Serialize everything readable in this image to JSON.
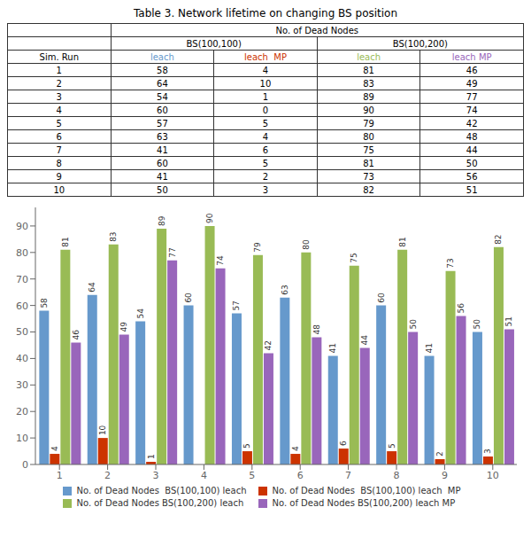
{
  "chart_data": {
    "type": "bar",
    "title": "Table 3. Network lifetime on changing BS position",
    "categories": [
      "1",
      "2",
      "3",
      "4",
      "5",
      "6",
      "7",
      "8",
      "9",
      "10"
    ],
    "series": [
      {
        "name": "No. of Dead Nodes  BS(100,100) leach",
        "color": "#6699CC",
        "values": [
          58,
          64,
          54,
          60,
          57,
          63,
          41,
          60,
          41,
          50
        ]
      },
      {
        "name": "No. of Dead Nodes  BS(100,100) leach  MP",
        "color": "#CC3300",
        "values": [
          4,
          10,
          1,
          0,
          5,
          4,
          6,
          5,
          2,
          3
        ]
      },
      {
        "name": "No. of Dead Nodes BS(100,200) leach",
        "color": "#99BB55",
        "values": [
          81,
          83,
          89,
          90,
          79,
          80,
          75,
          81,
          73,
          82
        ]
      },
      {
        "name": "No. of Dead Nodes BS(100,200) leach MP",
        "color": "#9966BB",
        "values": [
          46,
          49,
          77,
          74,
          42,
          48,
          44,
          50,
          56,
          51
        ]
      }
    ],
    "ylim": [
      0,
      97
    ],
    "yticks": [
      0,
      10,
      20,
      30,
      40,
      50,
      60,
      70,
      80,
      90
    ],
    "grid": false,
    "data_labels": true,
    "annotations": [
      "No. of Dead Nodes",
      "BS(100,100)",
      "BS(100,200)",
      "Sim. Run",
      "leach",
      "leach  MP",
      "leach",
      "leach MP"
    ]
  }
}
